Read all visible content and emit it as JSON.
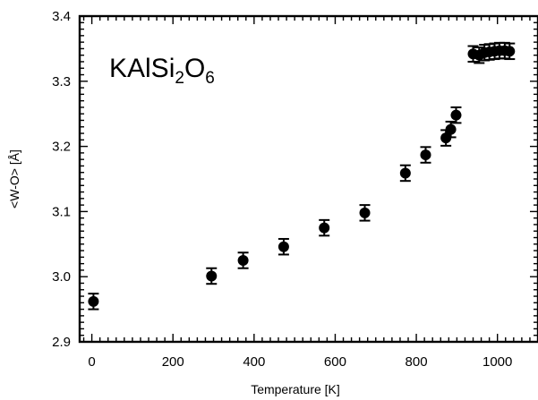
{
  "chart_data": {
    "type": "scatter",
    "title_parts": [
      {
        "text": "KAlSi",
        "baseline": "normal"
      },
      {
        "text": "2",
        "baseline": "sub"
      },
      {
        "text": "O",
        "baseline": "normal"
      },
      {
        "text": "6",
        "baseline": "sub"
      }
    ],
    "xlabel": "Temperature  [K]",
    "ylabel": "<W-O> [Å]",
    "xlim": [
      -30,
      1100
    ],
    "ylim": [
      2.9,
      3.4
    ],
    "x_ticks": [
      0,
      200,
      400,
      600,
      800,
      1000
    ],
    "x_tick_labels": [
      "0",
      "200",
      "400",
      "600",
      "800",
      "1000"
    ],
    "y_ticks": [
      2.9,
      3.0,
      3.1,
      3.2,
      3.3,
      3.4
    ],
    "y_tick_labels": [
      "2.9",
      "3.0",
      "3.1",
      "3.2",
      "3.3",
      "3.4"
    ],
    "x_minor_step": 20,
    "y_minor_step": 0.01,
    "grid": false,
    "series": [
      {
        "marker": "filled-circle",
        "color": "#000000",
        "points": [
          {
            "x": 4,
            "y": 2.962,
            "err": 0.012
          },
          {
            "x": 295,
            "y": 3.001,
            "err": 0.012
          },
          {
            "x": 373,
            "y": 3.025,
            "err": 0.012
          },
          {
            "x": 473,
            "y": 3.046,
            "err": 0.012
          },
          {
            "x": 573,
            "y": 3.075,
            "err": 0.012
          },
          {
            "x": 673,
            "y": 3.098,
            "err": 0.012
          },
          {
            "x": 773,
            "y": 3.159,
            "err": 0.012
          },
          {
            "x": 823,
            "y": 3.187,
            "err": 0.012
          },
          {
            "x": 873,
            "y": 3.213,
            "err": 0.012
          },
          {
            "x": 885,
            "y": 3.226,
            "err": 0.012
          },
          {
            "x": 898,
            "y": 3.248,
            "err": 0.012
          },
          {
            "x": 940,
            "y": 3.342,
            "err": 0.012
          },
          {
            "x": 955,
            "y": 3.34,
            "err": 0.012
          },
          {
            "x": 968,
            "y": 3.344,
            "err": 0.012
          },
          {
            "x": 980,
            "y": 3.345,
            "err": 0.012
          },
          {
            "x": 993,
            "y": 3.346,
            "err": 0.012
          },
          {
            "x": 1005,
            "y": 3.347,
            "err": 0.012
          },
          {
            "x": 1018,
            "y": 3.347,
            "err": 0.012
          },
          {
            "x": 1030,
            "y": 3.346,
            "err": 0.012
          }
        ]
      }
    ]
  }
}
